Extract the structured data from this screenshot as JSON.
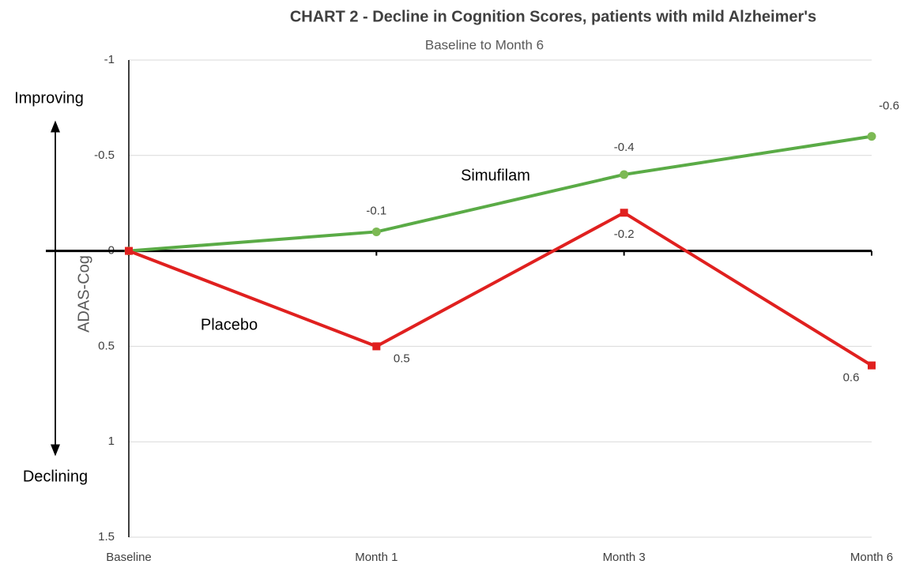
{
  "chart_data": {
    "type": "line",
    "title": "CHART 2 - Decline in Cognition Scores, patients with mild Alzheimer's",
    "subtitle": "Baseline to Month 6",
    "y_label": "ADAS-Cog",
    "annotations": [
      "Improving",
      "Declining"
    ],
    "categories": [
      "Baseline",
      "Month 1",
      "Month 3",
      "Month 6"
    ],
    "series": [
      {
        "name": "Simufilam",
        "color": "#5aab46",
        "marker": "circle",
        "values": [
          0,
          -0.1,
          -0.4,
          -0.6
        ],
        "value_labels": [
          null,
          "-0.1",
          "-0.4",
          "-0.6"
        ]
      },
      {
        "name": "Placebo",
        "color": "#e0201f",
        "marker": "square",
        "values": [
          0,
          0.5,
          -0.2,
          0.6
        ],
        "value_labels": [
          null,
          "0.5",
          "-0.2",
          "0.6"
        ]
      }
    ],
    "ylim": [
      -1,
      1.5
    ],
    "y_reversed": true,
    "yticks": [
      -1,
      -0.5,
      0,
      0.5,
      1,
      1.5
    ],
    "grid": true
  }
}
